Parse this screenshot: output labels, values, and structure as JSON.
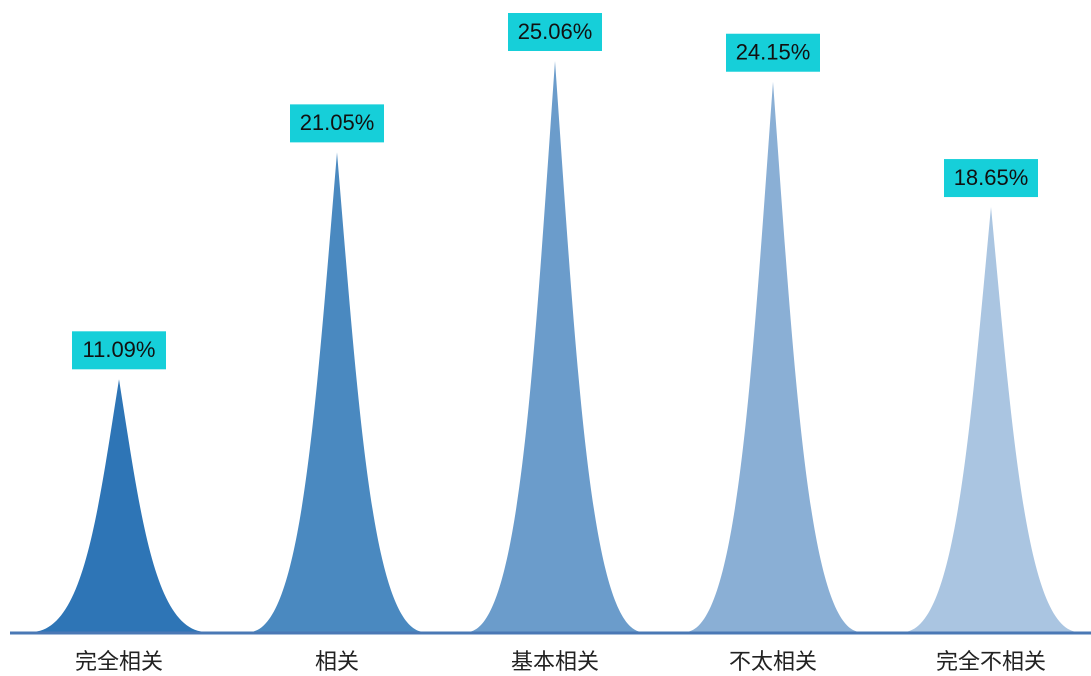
{
  "chart_data": {
    "type": "bar",
    "categories": [
      "完全相关",
      "相关",
      "基本相关",
      "不太相关",
      "完全不相关"
    ],
    "values": [
      11.09,
      21.05,
      25.06,
      24.15,
      18.65
    ],
    "data_labels": [
      "11.09%",
      "21.05%",
      "25.06%",
      "24.15%",
      "18.65%"
    ],
    "ylim": [
      0,
      25.06
    ],
    "grid": false,
    "colors": [
      "#2e75b6",
      "#4a89c0",
      "#6b9ccb",
      "#8aafd5",
      "#aac5e1"
    ],
    "label_bg": "#16cfd9",
    "baseline_color": "#4a78b5"
  }
}
